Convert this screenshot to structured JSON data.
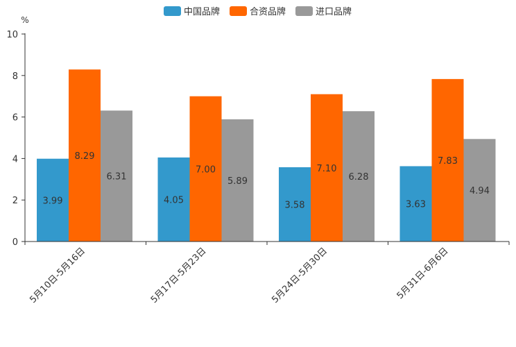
{
  "chart_data": {
    "type": "bar",
    "title": "",
    "xlabel": "",
    "ylabel": "%",
    "ylim": [
      0,
      10
    ],
    "yticks": [
      "0",
      "2",
      "4",
      "6",
      "8",
      "10"
    ],
    "grid": false,
    "legend_position": "top-center",
    "categories": [
      "5月10日-5月16日",
      "5月17日-5月23日",
      "5月24日-5月30日",
      "5月31日-6月6日"
    ],
    "series": [
      {
        "name": "中国品牌",
        "color": "#3399cc",
        "values": [
          3.99,
          4.05,
          3.58,
          3.63
        ],
        "labels": [
          "3.99",
          "4.05",
          "3.58",
          "3.63"
        ]
      },
      {
        "name": "合资品牌",
        "color": "#ff6600",
        "values": [
          8.29,
          7.0,
          7.1,
          7.83
        ],
        "labels": [
          "8.29",
          "7.00",
          "7.10",
          "7.83"
        ]
      },
      {
        "name": "进口品牌",
        "color": "#999999",
        "values": [
          6.31,
          5.89,
          6.28,
          4.94
        ],
        "labels": [
          "6.31",
          "5.89",
          "6.28",
          "4.94"
        ]
      }
    ]
  }
}
